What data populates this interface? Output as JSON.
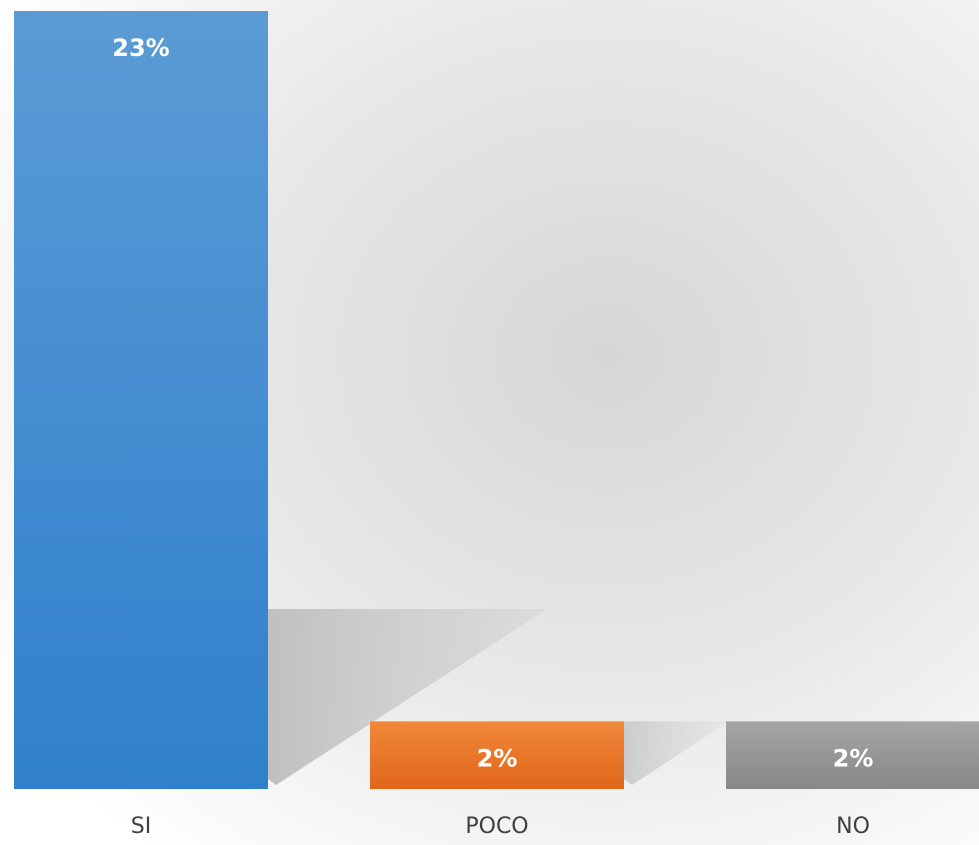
{
  "chart_data": {
    "type": "bar",
    "categories": [
      "SI",
      "POCO",
      "NO"
    ],
    "values": [
      23,
      2,
      2
    ],
    "value_labels": [
      "23%",
      "2%",
      "2%"
    ],
    "ylim": [
      0,
      23
    ],
    "grid": false,
    "legend": "none",
    "colors": {
      "SI": [
        "#5b9bd5",
        "#2f80cc"
      ],
      "POCO": [
        "#f0883a",
        "#e0661a"
      ],
      "NO": [
        "#a5a5a5",
        "#888888"
      ]
    }
  }
}
